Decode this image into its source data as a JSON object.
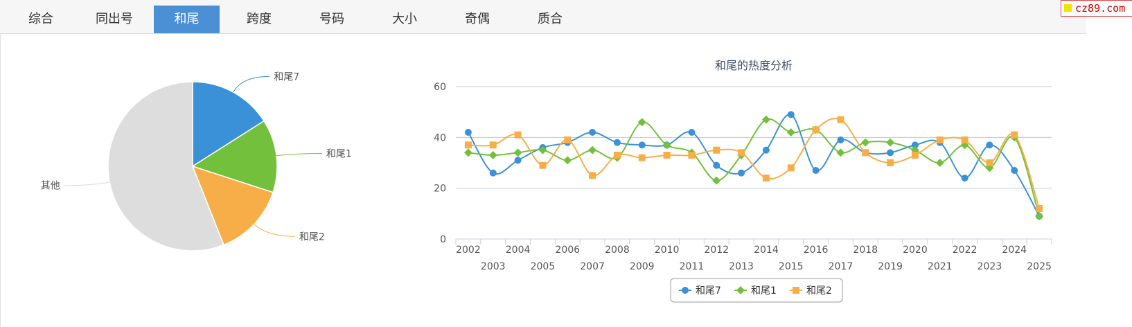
{
  "tabs": [
    {
      "label": "综合",
      "active": false
    },
    {
      "label": "同出号",
      "active": false
    },
    {
      "label": "和尾",
      "active": true
    },
    {
      "label": "跨度",
      "active": false
    },
    {
      "label": "号码",
      "active": false
    },
    {
      "label": "大小",
      "active": false
    },
    {
      "label": "奇偶",
      "active": false
    },
    {
      "label": "质合",
      "active": false
    }
  ],
  "brand": {
    "text": "cz89.com",
    "accent_color": "#f3e400",
    "border_color": "#dd4444"
  },
  "chart_data": [
    {
      "type": "pie",
      "slices": [
        {
          "label": "和尾7",
          "value": 16,
          "color": "#3b91d8"
        },
        {
          "label": "和尾1",
          "value": 14,
          "color": "#72c03c"
        },
        {
          "label": "和尾2",
          "value": 14,
          "color": "#f7ae48"
        },
        {
          "label": "其他",
          "value": 56,
          "color": "#dddddd"
        }
      ]
    },
    {
      "type": "line",
      "title": "和尾的热度分析",
      "x": [
        2002,
        2003,
        2004,
        2005,
        2006,
        2007,
        2008,
        2009,
        2010,
        2011,
        2012,
        2013,
        2014,
        2015,
        2016,
        2017,
        2018,
        2019,
        2020,
        2021,
        2022,
        2023,
        2024,
        2025
      ],
      "x_labels": [
        "2002",
        "2003",
        "2004",
        "2005",
        "2006",
        "2007",
        "2008",
        "2009",
        "2010",
        "2011",
        "2012",
        "2013",
        "2014",
        "2015",
        "2016",
        "2017",
        "2018",
        "2019",
        "2020",
        "2021",
        "2022",
        "2023",
        "2024",
        "2025"
      ],
      "ylim": [
        0,
        60
      ],
      "yticks": [
        "0",
        "20",
        "40",
        "60"
      ],
      "grid": true,
      "legend_position": "bottom-center",
      "series": [
        {
          "name": "和尾7",
          "color": "#3b91d8",
          "marker": "circle",
          "values": [
            42,
            26,
            31,
            36,
            38,
            42,
            38,
            37,
            37,
            42,
            29,
            26,
            35,
            49,
            27,
            39,
            34,
            34,
            37,
            38,
            24,
            37,
            27,
            9
          ]
        },
        {
          "name": "和尾1",
          "color": "#72c03c",
          "marker": "diamond",
          "values": [
            34,
            33,
            34,
            35,
            31,
            35,
            32,
            46,
            37,
            34,
            23,
            33,
            47,
            42,
            43,
            34,
            38,
            38,
            35,
            30,
            37,
            28,
            40,
            9
          ]
        },
        {
          "name": "和尾2",
          "color": "#f7ae48",
          "marker": "square",
          "values": [
            37,
            37,
            41,
            29,
            39,
            25,
            33,
            32,
            33,
            33,
            35,
            34,
            24,
            28,
            43,
            47,
            34,
            30,
            33,
            39,
            39,
            30,
            41,
            12
          ]
        }
      ]
    }
  ]
}
